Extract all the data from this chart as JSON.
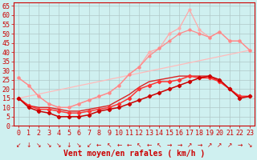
{
  "bg_color": "#cff0f0",
  "grid_color": "#b0c8c8",
  "xlabel": "Vent moyen/en rafales ( km/h )",
  "xlabel_color": "#cc0000",
  "xlabel_fontsize": 7,
  "tick_color": "#cc0000",
  "tick_fontsize": 6,
  "xlim": [
    -0.5,
    23.5
  ],
  "ylim": [
    0,
    67
  ],
  "yticks": [
    0,
    5,
    10,
    15,
    20,
    25,
    30,
    35,
    40,
    45,
    50,
    55,
    60,
    65
  ],
  "xticks": [
    0,
    1,
    2,
    3,
    4,
    5,
    6,
    7,
    8,
    9,
    10,
    11,
    12,
    13,
    14,
    15,
    16,
    17,
    18,
    19,
    20,
    21,
    22,
    23
  ],
  "lines": [
    {
      "x": [
        0,
        23
      ],
      "y": [
        15,
        41
      ],
      "color": "#ffbbbb",
      "lw": 0.9,
      "marker": null,
      "ms": 0,
      "zorder": 1
    },
    {
      "x": [
        0,
        1,
        2,
        3,
        4,
        5,
        6,
        7,
        8,
        9,
        10,
        11,
        12,
        13,
        14,
        15,
        16,
        17,
        18,
        19,
        20,
        21,
        22,
        23
      ],
      "y": [
        26,
        22,
        16,
        12,
        10,
        10,
        12,
        14,
        16,
        18,
        22,
        28,
        32,
        40,
        42,
        50,
        53,
        63,
        52,
        48,
        51,
        46,
        46,
        41
      ],
      "color": "#ffaaaa",
      "lw": 0.9,
      "marker": "o",
      "ms": 2.0,
      "zorder": 2
    },
    {
      "x": [
        0,
        1,
        2,
        3,
        4,
        5,
        6,
        7,
        8,
        9,
        10,
        11,
        12,
        13,
        14,
        15,
        16,
        17,
        18,
        19,
        20,
        21,
        22,
        23
      ],
      "y": [
        26,
        22,
        16,
        12,
        10,
        10,
        12,
        14,
        16,
        18,
        22,
        28,
        32,
        38,
        42,
        46,
        50,
        52,
        50,
        48,
        51,
        46,
        46,
        41
      ],
      "color": "#ff8888",
      "lw": 0.9,
      "marker": "o",
      "ms": 2.0,
      "zorder": 3
    },
    {
      "x": [
        0,
        1,
        2,
        3,
        4,
        5,
        6,
        7,
        8,
        9,
        10,
        11,
        12,
        13,
        14,
        15,
        16,
        17,
        18,
        19,
        20,
        21,
        22,
        23
      ],
      "y": [
        15,
        11,
        9,
        9,
        8,
        7,
        7,
        8,
        9,
        10,
        12,
        15,
        20,
        22,
        24,
        24,
        25,
        27,
        26,
        26,
        24,
        20,
        16,
        16
      ],
      "color": "#ff3333",
      "lw": 1.1,
      "marker": "D",
      "ms": 2.2,
      "zorder": 5
    },
    {
      "x": [
        0,
        1,
        2,
        3,
        4,
        5,
        6,
        7,
        8,
        9,
        10,
        11,
        12,
        13,
        14,
        15,
        16,
        17,
        18,
        19,
        20,
        21,
        22,
        23
      ],
      "y": [
        15,
        10,
        8,
        7,
        5,
        5,
        5,
        6,
        8,
        9,
        10,
        12,
        14,
        16,
        18,
        20,
        22,
        24,
        26,
        27,
        25,
        20,
        15,
        16
      ],
      "color": "#cc0000",
      "lw": 1.1,
      "marker": "D",
      "ms": 2.2,
      "zorder": 6
    },
    {
      "x": [
        0,
        1,
        2,
        3,
        4,
        5,
        6,
        7,
        8,
        9,
        10,
        11,
        12,
        13,
        14,
        15,
        16,
        17,
        18,
        19,
        20,
        21,
        22,
        23
      ],
      "y": [
        15,
        11,
        10,
        10,
        9,
        8,
        8,
        9,
        10,
        11,
        14,
        17,
        21,
        24,
        25,
        26,
        27,
        27,
        27,
        27,
        24,
        20,
        16,
        16
      ],
      "color": "#dd2222",
      "lw": 1.0,
      "marker": null,
      "ms": 0,
      "zorder": 4
    }
  ],
  "wind_chars": [
    "↙",
    "↓",
    "↘",
    "↘",
    "↘",
    "↓",
    "↘",
    "↙",
    "←",
    "↖",
    "←",
    "←",
    "↖",
    "←",
    "↖",
    "→",
    "→",
    "↗",
    "→",
    "↗",
    "↗",
    "↗",
    "→",
    "↘"
  ]
}
